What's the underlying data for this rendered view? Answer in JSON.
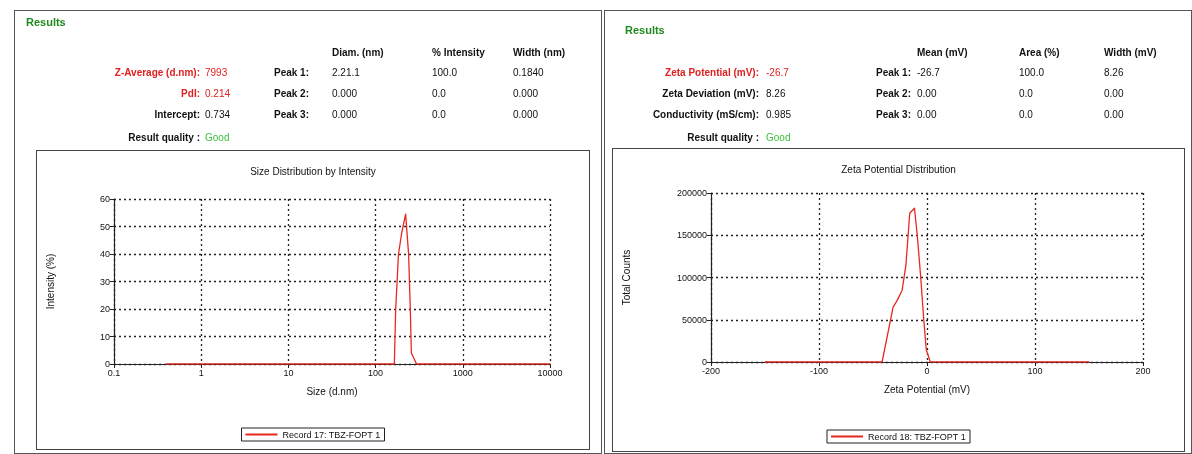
{
  "chart_data": [
    {
      "type": "other",
      "title": "Results",
      "annotations": [
        "Z-Average (d.nm):",
        "7993",
        "PdI:",
        "0.214",
        "Intercept:",
        "0.734",
        "Result quality :",
        "Good",
        "Diam. (nm)",
        "% Intensity",
        "Width (nm)",
        "Peak 1:",
        "2.21.1",
        "100.0",
        "0.1840",
        "Peak 2:",
        "0.000",
        "0.0",
        "0.000",
        "Peak 3:",
        "0.000",
        "0.0",
        "0.000"
      ]
    },
    {
      "type": "line",
      "title": "Size Distribution by Intensity",
      "xlabel": "Size (d.nm)",
      "ylabel": "Intensity (%)",
      "log": "x",
      "xlim": [
        0.1,
        10000
      ],
      "xticks": [
        0.1,
        1,
        10,
        100,
        1000,
        10000
      ],
      "ylim": [
        0,
        60
      ],
      "yticks": [
        0,
        10,
        20,
        30,
        40,
        50,
        60
      ],
      "grid": true,
      "legend": "bottom",
      "marker": "none",
      "line_style": "solid",
      "series": [
        {
          "name": "Record 17: TBZ-FOPT 1",
          "color": "#e8281e",
          "x": [
            0.4,
            164,
            170,
            183,
            200,
            221,
            239,
            250,
            257,
            295,
            10000
          ],
          "values": [
            0,
            0,
            20,
            40,
            48,
            54.5,
            40,
            20,
            4,
            0,
            0
          ]
        }
      ]
    },
    {
      "type": "other",
      "title": "Results",
      "annotations": [
        "Zeta Potential (mV):",
        "-26.7",
        "Zeta Deviation (mV):",
        "8.26",
        "Conductivity (mS/cm):",
        "0.985",
        "Result quality :",
        "Good",
        "Mean (mV)",
        "Area (%)",
        "Width (mV)",
        "Peak 1:",
        "-26.7",
        "100.0",
        "8.26",
        "Peak 2:",
        "0.00",
        "0.0",
        "0.00",
        "Peak 3:",
        "0.00",
        "0.0",
        "0.00"
      ]
    },
    {
      "type": "line",
      "title": "Zeta Potential Distribution",
      "xlabel": "Zeta Potential (mV)",
      "ylabel": "Total Counts",
      "xlim": [
        -200,
        200
      ],
      "xticks": [
        -200,
        -100,
        0,
        100,
        200
      ],
      "ylim": [
        0,
        200000
      ],
      "yticks": [
        0,
        50000,
        100000,
        150000,
        200000
      ],
      "grid": true,
      "legend": "bottom",
      "marker": "none",
      "line_style": "solid",
      "series": [
        {
          "name": "Record 18: TBZ-FOPT 1",
          "color": "#e8281e",
          "x": [
            -150,
            -41.6,
            -31.4,
            -28,
            -23,
            -19.5,
            -16,
            -11.6,
            -9,
            -5.8,
            -3,
            -0.7,
            3,
            150
          ],
          "values": [
            0,
            0,
            65000,
            72000,
            85000,
            115000,
            176000,
            182000,
            150000,
            100000,
            50000,
            15000,
            0,
            0
          ]
        }
      ]
    }
  ]
}
